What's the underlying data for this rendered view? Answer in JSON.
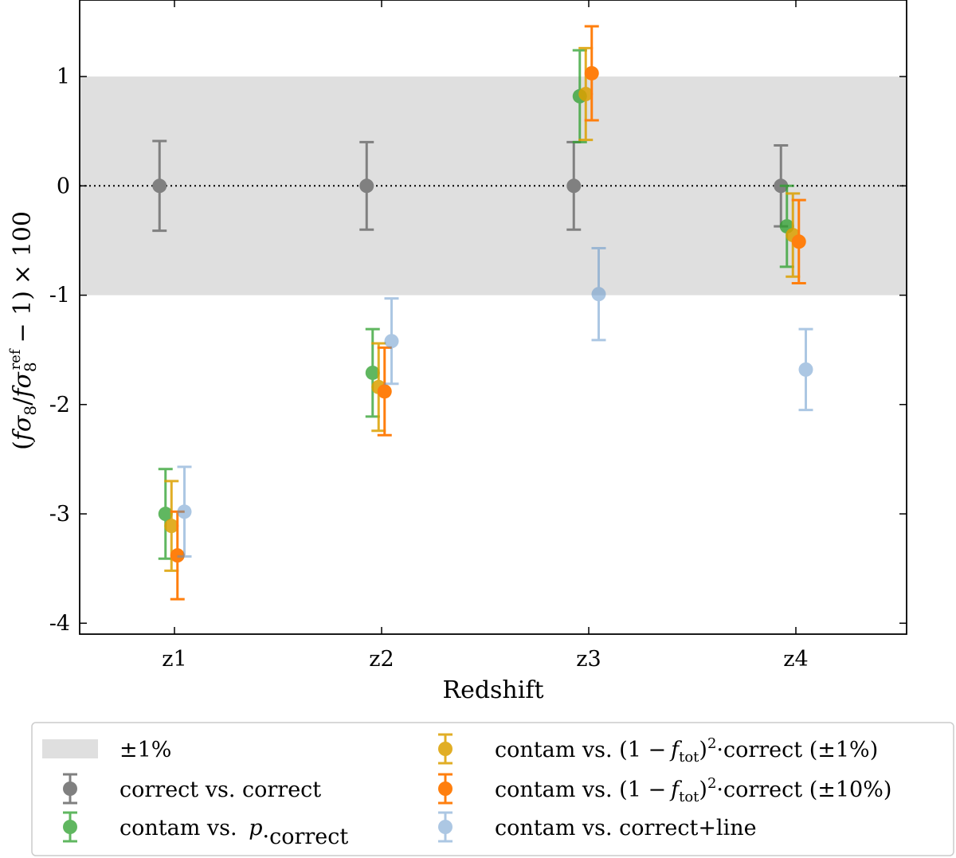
{
  "chart_data": {
    "type": "scatter",
    "subtype": "errorbar",
    "xlabel": "Redshift",
    "ylabel_parts": {
      "open": "(",
      "f1": "f",
      "sigma1": "σ",
      "sub1": "8",
      "slash": "/",
      "f2": "f",
      "sigma2": "σ",
      "sub2": "8",
      "sup2": "ref",
      "minus_one": "− 1)",
      "times": "× 100"
    },
    "categories": [
      "z1",
      "z2",
      "z3",
      "z4"
    ],
    "ylim": [
      -4.1,
      1.7
    ],
    "yticks": [
      {
        "value": 1,
        "label": "1"
      },
      {
        "value": 0,
        "label": "0"
      },
      {
        "value": -1,
        "label": "-1"
      },
      {
        "value": -2,
        "label": "-2"
      },
      {
        "value": -3,
        "label": "-3"
      },
      {
        "value": -4,
        "label": "-4"
      }
    ],
    "band": {
      "low": -1,
      "high": 1,
      "color": "#dfdfdf",
      "label": "±1%"
    },
    "reference_line": {
      "y": 0,
      "style": "dotted"
    },
    "series": [
      {
        "name": "correct vs. correct",
        "color": "#808080",
        "opacity": 1.0,
        "offset": -0.15,
        "values": [
          0.0,
          0.0,
          0.0,
          0.0
        ],
        "errors": [
          0.41,
          0.4,
          0.4,
          0.37
        ]
      },
      {
        "name": "contam vs. p·correct",
        "color": "#2ca02c",
        "opacity": 0.75,
        "offset": -0.09,
        "values": [
          -3.0,
          -1.71,
          0.82,
          -0.37
        ],
        "errors": [
          0.41,
          0.4,
          0.42,
          0.37
        ]
      },
      {
        "name": "contam vs. (1 − f_tot)²·correct (±1%)",
        "color": "#dca000",
        "opacity": 0.85,
        "offset": -0.03,
        "values": [
          -3.11,
          -1.84,
          0.84,
          -0.45
        ],
        "errors": [
          0.41,
          0.4,
          0.42,
          0.38
        ]
      },
      {
        "name": "contam vs. (1 − f_tot)²·correct (±10%)",
        "color": "#ff7f0e",
        "opacity": 1.0,
        "offset": 0.03,
        "values": [
          -3.38,
          -1.88,
          1.03,
          -0.51
        ],
        "errors": [
          0.4,
          0.4,
          0.43,
          0.38
        ]
      },
      {
        "name": "contam vs. correct+line",
        "color": "#5b90c8",
        "opacity": 0.5,
        "offset": 0.1,
        "values": [
          -2.98,
          -1.42,
          -0.99,
          -1.68
        ],
        "errors": [
          0.41,
          0.39,
          0.42,
          0.37
        ]
      }
    ],
    "legend": {
      "placement": "below-plot",
      "col1": [
        {
          "kind": "band",
          "prefix": "±1%",
          "series": null
        },
        {
          "kind": "marker",
          "prefix": "correct vs. correct",
          "series": 0
        },
        {
          "kind": "marker",
          "prefix": "contam vs. ",
          "italic": "p",
          "suffix": "·correct",
          "series": 1
        }
      ],
      "col2": [
        {
          "prefix": "contam vs. (1 −",
          "italic": "f",
          "sub": "tot",
          "mid": ")",
          "sup": "2",
          "suffix": "·correct (±1%)",
          "series": 2
        },
        {
          "prefix": "contam vs. (1 −",
          "italic": "f",
          "sub": "tot",
          "mid": ")",
          "sup": "2",
          "suffix": "·correct (±10%)",
          "series": 3
        },
        {
          "prefix": "contam vs. correct+line",
          "series": 4
        }
      ]
    }
  }
}
